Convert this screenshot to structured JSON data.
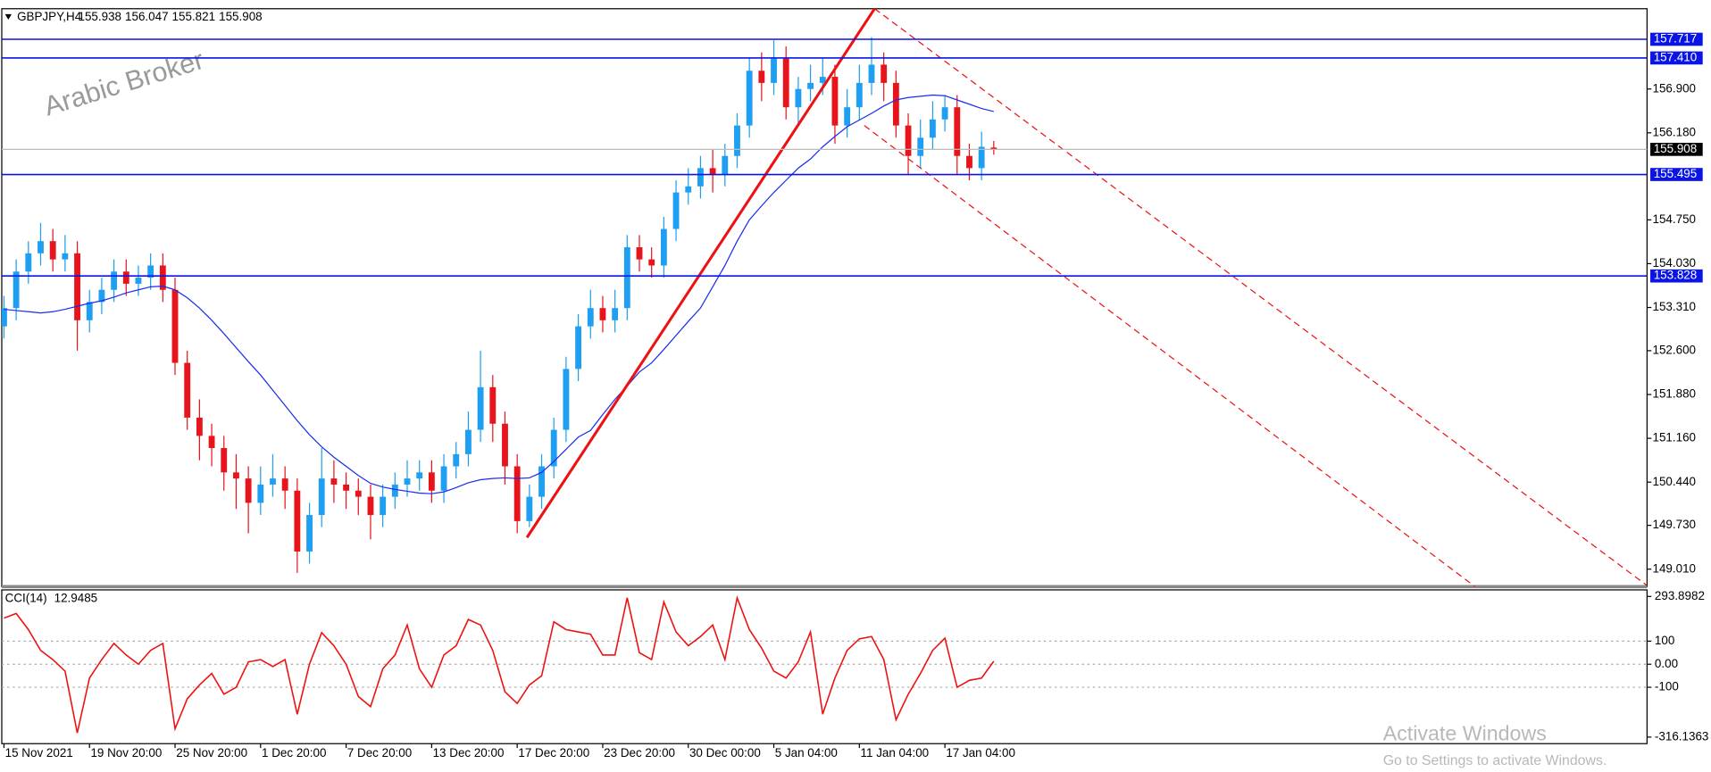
{
  "chart_data": {
    "type": "candlestick",
    "symbol": "GBPJPY,H4",
    "watermark": "Arabic Broker",
    "categories": [
      "15 Nov 2021",
      null,
      null,
      null,
      null,
      null,
      null,
      "19 Nov 20:00",
      null,
      null,
      null,
      null,
      null,
      null,
      "25 Nov 20:00",
      null,
      null,
      null,
      null,
      null,
      null,
      "1 Dec 20:00",
      null,
      null,
      null,
      null,
      null,
      null,
      "7 Dec 20:00",
      null,
      null,
      null,
      null,
      null,
      null,
      "13 Dec 20:00",
      null,
      null,
      null,
      null,
      null,
      null,
      "17 Dec 20:00",
      null,
      null,
      null,
      null,
      null,
      null,
      "23 Dec 20:00",
      null,
      null,
      null,
      null,
      null,
      null,
      "30 Dec 00:00",
      null,
      null,
      null,
      null,
      null,
      null,
      "5 Jan 04:00",
      null,
      null,
      null,
      null,
      null,
      null,
      "11 Jan 04:00",
      null,
      null,
      null,
      null,
      null,
      null,
      "17 Jan 04:00",
      null,
      null,
      null,
      null
    ],
    "open": [
      153,
      153.3,
      153.9,
      154.2,
      154.4,
      154.1,
      154.2,
      153.1,
      153.4,
      153.6,
      153.9,
      153.7,
      153.8,
      154,
      153.6,
      152.4,
      151.5,
      151.2,
      151,
      150.6,
      150.5,
      150.1,
      150.4,
      150.5,
      150.3,
      149.3,
      149.9,
      150.5,
      150.4,
      150.3,
      150.2,
      149.9,
      150.2,
      150.4,
      150.5,
      150.6,
      150.3,
      150.7,
      150.9,
      151.3,
      152,
      151.4,
      150.7,
      149.8,
      150.2,
      150.7,
      151.3,
      152.3,
      153,
      153.3,
      153.1,
      153.3,
      154.3,
      154.1,
      154,
      154.6,
      155.2,
      155.3,
      155.6,
      155.5,
      155.8,
      156.3,
      157.2,
      157,
      157.4,
      156.6,
      156.9,
      157,
      157.1,
      156.3,
      156.6,
      157,
      157.3,
      157,
      156.3,
      155.8,
      156.1,
      156.4,
      156.6,
      155.8,
      155.6,
      155.938
    ],
    "high": [
      153.5,
      154.1,
      154.4,
      154.7,
      154.6,
      154.5,
      154.4,
      153.6,
      153.8,
      154.1,
      154.1,
      154,
      154.2,
      154.2,
      153.8,
      152.6,
      151.8,
      151.4,
      151.2,
      150.9,
      150.7,
      150.7,
      150.9,
      150.7,
      150.5,
      150.1,
      151,
      150.8,
      150.6,
      150.5,
      150.4,
      150.4,
      150.6,
      150.8,
      150.8,
      150.8,
      150.9,
      151.1,
      151.6,
      152.6,
      152.2,
      151.6,
      150.9,
      150.4,
      150.9,
      151.5,
      152.5,
      153.2,
      153.6,
      153.5,
      153.6,
      154.5,
      154.5,
      154.3,
      154.8,
      155.4,
      155.6,
      155.8,
      155.9,
      156,
      156.5,
      157.4,
      157.5,
      157.7,
      157.6,
      157.1,
      157.3,
      157.4,
      157.3,
      156.9,
      157.3,
      157.75,
      157.5,
      157.2,
      156.5,
      156.4,
      156.7,
      156.8,
      156.8,
      156,
      156.2,
      156.047
    ],
    "low": [
      152.8,
      153.1,
      153.7,
      154,
      153.9,
      153.9,
      152.6,
      152.9,
      153.2,
      153.4,
      153.5,
      153.5,
      153.6,
      153.4,
      152.2,
      151.3,
      150.8,
      150.7,
      150.3,
      150,
      149.6,
      149.9,
      150.2,
      150,
      148.95,
      149.1,
      149.7,
      150.1,
      150,
      149.9,
      149.5,
      149.7,
      150,
      150.2,
      150.3,
      150.1,
      150.1,
      150.5,
      150.7,
      151.1,
      151.1,
      150.4,
      149.6,
      149.7,
      150,
      150.5,
      151.1,
      152.1,
      152.8,
      152.9,
      152.9,
      153.1,
      153.9,
      153.8,
      153.8,
      154.4,
      155,
      155.1,
      155.2,
      155.3,
      155.6,
      156.1,
      156.7,
      156.8,
      156.4,
      156.3,
      156.7,
      156.8,
      156,
      156.1,
      156.4,
      156.8,
      156.7,
      156.1,
      155.5,
      155.6,
      155.9,
      156.2,
      155.5,
      155.4,
      155.4,
      155.821
    ],
    "close": [
      153.3,
      153.9,
      154.2,
      154.4,
      154.1,
      154.2,
      153.1,
      153.4,
      153.6,
      153.9,
      153.7,
      153.8,
      154,
      153.6,
      152.4,
      151.5,
      151.2,
      151,
      150.6,
      150.5,
      150.1,
      150.4,
      150.5,
      150.3,
      149.3,
      149.9,
      150.5,
      150.4,
      150.3,
      150.2,
      149.9,
      150.2,
      150.4,
      150.5,
      150.6,
      150.3,
      150.7,
      150.9,
      151.3,
      152,
      151.4,
      150.7,
      149.8,
      150.2,
      150.7,
      151.3,
      152.3,
      153,
      153.3,
      153.1,
      153.3,
      154.3,
      154.1,
      154,
      154.6,
      155.2,
      155.3,
      155.6,
      155.5,
      155.8,
      156.3,
      157.2,
      157,
      157.4,
      156.6,
      156.9,
      157,
      157.1,
      156.3,
      156.6,
      157,
      157.3,
      157,
      156.3,
      155.8,
      156.1,
      156.4,
      156.6,
      155.8,
      155.6,
      155.95,
      155.908
    ],
    "up_color": "#1e9ff2",
    "down_color": "#e8141c",
    "ma": {
      "color": "#1a2cf0",
      "values": [
        153.28,
        153.26,
        153.24,
        153.22,
        153.24,
        153.28,
        153.33,
        153.38,
        153.42,
        153.48,
        153.55,
        153.6,
        153.65,
        153.66,
        153.6,
        153.47,
        153.3,
        153.1,
        152.88,
        152.65,
        152.42,
        152.2,
        151.95,
        151.7,
        151.45,
        151.22,
        151.02,
        150.85,
        150.7,
        150.55,
        150.42,
        150.36,
        150.32,
        150.29,
        150.26,
        150.25,
        150.28,
        150.35,
        150.43,
        150.48,
        150.5,
        150.51,
        150.5,
        150.51,
        150.6,
        150.78,
        150.98,
        151.18,
        151.29,
        151.55,
        151.8,
        152.02,
        152.25,
        152.4,
        152.62,
        152.85,
        153.08,
        153.3,
        153.65,
        154,
        154.4,
        154.75,
        154.98,
        155.2,
        155.4,
        155.6,
        155.75,
        155.95,
        156.12,
        156.28,
        156.39,
        156.5,
        156.62,
        156.72,
        156.76,
        156.78,
        156.8,
        156.79,
        156.72,
        156.65,
        156.58,
        156.53
      ]
    },
    "xlim": [
      -0.18,
      134.46
    ],
    "ylim": [
      148.723,
      158.219
    ],
    "yticks": [
      {
        "value": 149.01,
        "label": "149.010"
      },
      {
        "value": 149.73,
        "label": "149.730"
      },
      {
        "value": 150.44,
        "label": "150.440"
      },
      {
        "value": 151.16,
        "label": "151.160"
      },
      {
        "value": 151.88,
        "label": "151.880"
      },
      {
        "value": 152.6,
        "label": "152.600"
      },
      {
        "value": 153.31,
        "label": "153.310"
      },
      {
        "value": 154.03,
        "label": "154.030"
      },
      {
        "value": 154.75,
        "label": "154.750"
      },
      {
        "value": 156.18,
        "label": "156.180"
      },
      {
        "value": 156.9,
        "label": "156.900"
      }
    ],
    "levels": [
      157.717,
      {
        "value": 157.41,
        "label": "157.410"
      },
      155.495,
      153.828
    ],
    "level_color": "#0a14e6",
    "trend_line": {
      "color": "#ee1111",
      "x": [
        42.8,
        71.25
      ],
      "y": [
        149.53,
        158.22
      ]
    },
    "channel": {
      "color": "#ee1111",
      "lines": [
        {
          "x": [
            71.25,
            134.6
          ],
          "y": [
            158.22,
            148.72
          ]
        },
        {
          "x": [
            70.4,
            120.4
          ],
          "y": [
            156.3,
            148.72
          ]
        }
      ]
    },
    "indicator": {
      "name": "CCI(14)",
      "color": "#ee1111",
      "values": [
        200,
        220,
        150,
        60,
        20,
        -30,
        -298,
        -60,
        20,
        90,
        40,
        0,
        60,
        90,
        -280,
        -150,
        -90,
        -40,
        -130,
        -100,
        10,
        20,
        -10,
        20,
        -217,
        0,
        137,
        80,
        0,
        -140,
        -184,
        -20,
        40,
        170,
        -20,
        -100,
        40,
        80,
        194,
        170,
        60,
        -120,
        -170,
        -90,
        -50,
        184,
        150,
        140,
        130,
        40,
        40,
        288,
        50,
        20,
        270,
        140,
        80,
        120,
        170,
        20,
        288,
        150,
        70,
        -30,
        -60,
        10,
        140,
        -217,
        -60,
        60,
        110,
        120,
        20,
        -241,
        -130,
        -40,
        60,
        113,
        -100,
        -70,
        -60,
        12.9485
      ],
      "ylim": [
        -316.1363,
        293.8982
      ],
      "yticks": [
        293.8982,
        100,
        {
          "value": 0,
          "label": "0.00"
        },
        -100,
        -316.1363
      ]
    },
    "overlay": {
      "title": "Activate Windows",
      "subtitle": "Go to Settings to activate Windows."
    }
  }
}
